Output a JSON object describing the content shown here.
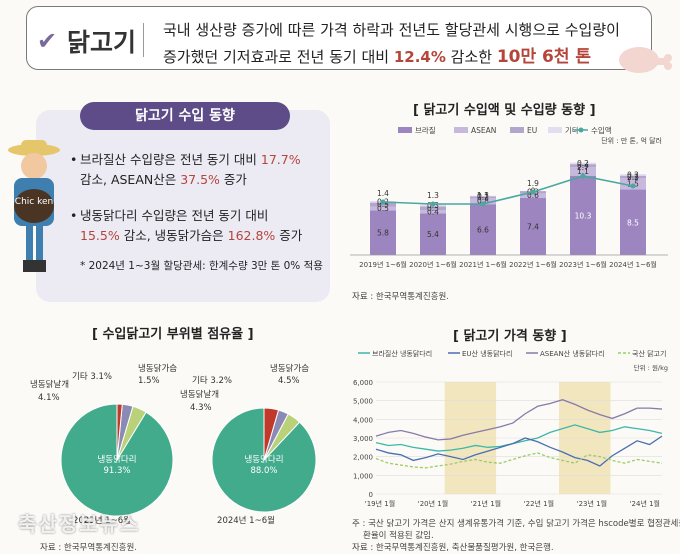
{
  "header": {
    "title": "닭고기",
    "line1": "국내 생산량 증가에 따른 가격 하락과 전년도 할당관세 시행으로 수입량이",
    "line2_pre": "증가했던 기저효과로 전년 동기 대비 ",
    "line2_pct": "12.4%",
    "line2_mid": " 감소한 ",
    "line2_amt": "10만 6천 톤"
  },
  "trend_card": {
    "title": "닭고기 수입 동향",
    "b1_a": "브라질산 수입량은 전년 동기 대비 ",
    "b1_v1": "17.7%",
    "b1_b": "감소, ASEAN산은 ",
    "b1_v2": "37.5%",
    "b1_c": " 증가",
    "b2_a": "냉동닭다리 수입량은 전년 동기 대비",
    "b2_v1": "15.5%",
    "b2_b": " 감소, 냉동닭가슴은 ",
    "b2_v2": "162.8%",
    "b2_c": " 증가",
    "note": "* 2024년 1~3월 할당관세: 한계수량 3만 톤 0% 적용",
    "mascot_text": "Chic ken"
  },
  "colors": {
    "brazil": "#9d86c0",
    "asean": "#c7b8de",
    "eu": "#b3a6cc",
    "other": "#e4dcef",
    "line": "#4aa8a0",
    "leg_thigh": "#42ab8b",
    "other_cut": "#b9d27a",
    "thigh_cut": "#8a8ab4",
    "breast": "#c0392b",
    "price_brazil": "#3bb8a8",
    "price_eu": "#4a6fb0",
    "price_asean": "#8a7aa8",
    "price_dom": "#9ccc65",
    "band": "#f2e6bf"
  },
  "chart_data": [
    {
      "type": "bar",
      "title": "[ 닭고기 수입액 및 수입량 동향 ]",
      "unit": "단위 : 만 톤, 억 달러",
      "categories": [
        "2019년 1~6월",
        "2020년 1~6월",
        "2021년 1~6월",
        "2022년 1~6월",
        "2023년 1~6월",
        "2024년 1~6월"
      ],
      "series": [
        {
          "name": "브라질",
          "values": [
            5.8,
            5.4,
            6.6,
            7.4,
            10.3,
            8.5
          ]
        },
        {
          "name": "ASEAN",
          "values": [
            0.5,
            0.4,
            0.8,
            0.6,
            1.1,
            1.5
          ]
        },
        {
          "name": "EU",
          "values": [
            0.5,
            0.5,
            0.2,
            0.3,
            0.4,
            0.3
          ]
        },
        {
          "name": "기타",
          "values": [
            0.2,
            0.3,
            0.1,
            0.0,
            0.2,
            0.2
          ]
        }
      ],
      "line_series": {
        "name": "수입액",
        "values": [
          1.4,
          1.3,
          1.3,
          1.9,
          2.7,
          2.2
        ]
      },
      "source": "자료 : 한국무역통계진흥원."
    },
    {
      "type": "pie",
      "title": "[ 수입닭고기 부위별 점유율 ]",
      "pies": [
        {
          "label": "2023년 1~6월",
          "slices": [
            {
              "name": "냉동닭다리",
              "value": 91.3
            },
            {
              "name": "냉동닭날개",
              "value": 4.1
            },
            {
              "name": "기타",
              "value": 3.1
            },
            {
              "name": "냉동닭가슴",
              "value": 1.5
            }
          ]
        },
        {
          "label": "2024년 1~6월",
          "slices": [
            {
              "name": "냉동닭다리",
              "value": 88.0
            },
            {
              "name": "냉동닭날개",
              "value": 4.3
            },
            {
              "name": "기타",
              "value": 3.2
            },
            {
              "name": "냉동닭가슴",
              "value": 4.5
            }
          ]
        }
      ],
      "source": "자료 : 한국무역통계진흥원."
    },
    {
      "type": "line",
      "title": "[ 닭고기 가격 동향 ]",
      "unit": "단위 : 원/kg",
      "x_ticks": [
        "'19년 1월",
        "'20년 1월",
        "'21년 1월",
        "'22년 1월",
        "'23년 1월",
        "'24년 1월"
      ],
      "ylim": [
        0,
        6000
      ],
      "y_ticks": [
        "0",
        "1,000",
        "2,000",
        "3,000",
        "4,000",
        "5,000",
        "6,000"
      ],
      "series": [
        {
          "name": "브라질산 냉동닭다리",
          "values": [
            2750,
            2600,
            2650,
            2500,
            2400,
            2300,
            2350,
            2450,
            2600,
            2500,
            2550,
            2700,
            2850,
            3000,
            3300,
            3500,
            3700,
            3500,
            3300,
            3400,
            3600,
            3500,
            3400,
            3250
          ]
        },
        {
          "name": "EU산 냉동닭다리",
          "values": [
            2400,
            2200,
            2100,
            1800,
            1950,
            2150,
            2000,
            1850,
            2100,
            2300,
            2500,
            2700,
            3000,
            2800,
            2500,
            2250,
            1950,
            1800,
            1500,
            2050,
            2450,
            2850,
            2650,
            3100
          ]
        },
        {
          "name": "ASEAN산 냉동닭다리",
          "values": [
            3100,
            3300,
            3400,
            3250,
            3050,
            2900,
            2950,
            3150,
            3300,
            3450,
            3600,
            3800,
            4300,
            4700,
            4850,
            5050,
            4800,
            4500,
            4250,
            4050,
            4300,
            4600,
            4600,
            4550
          ]
        },
        {
          "name": "국산 닭고기",
          "values": [
            1900,
            1650,
            1550,
            1450,
            1400,
            1500,
            1600,
            1750,
            1850,
            1700,
            1650,
            1850,
            2050,
            2200,
            1950,
            1800,
            1650,
            2100,
            2000,
            1800,
            1650,
            1850,
            1750,
            1650
          ]
        }
      ],
      "notes": [
        "주 : 국산 닭고기 가격은 산지 생계유통가격 기준, 수입 닭고기 가격은 hscode별로 협정관세율과",
        "환율이 적용된 값임.",
        "자료 : 한국무역통계진흥원, 축산물품질평가원, 한국은행."
      ]
    }
  ],
  "watermark": "축산정보뉴스"
}
